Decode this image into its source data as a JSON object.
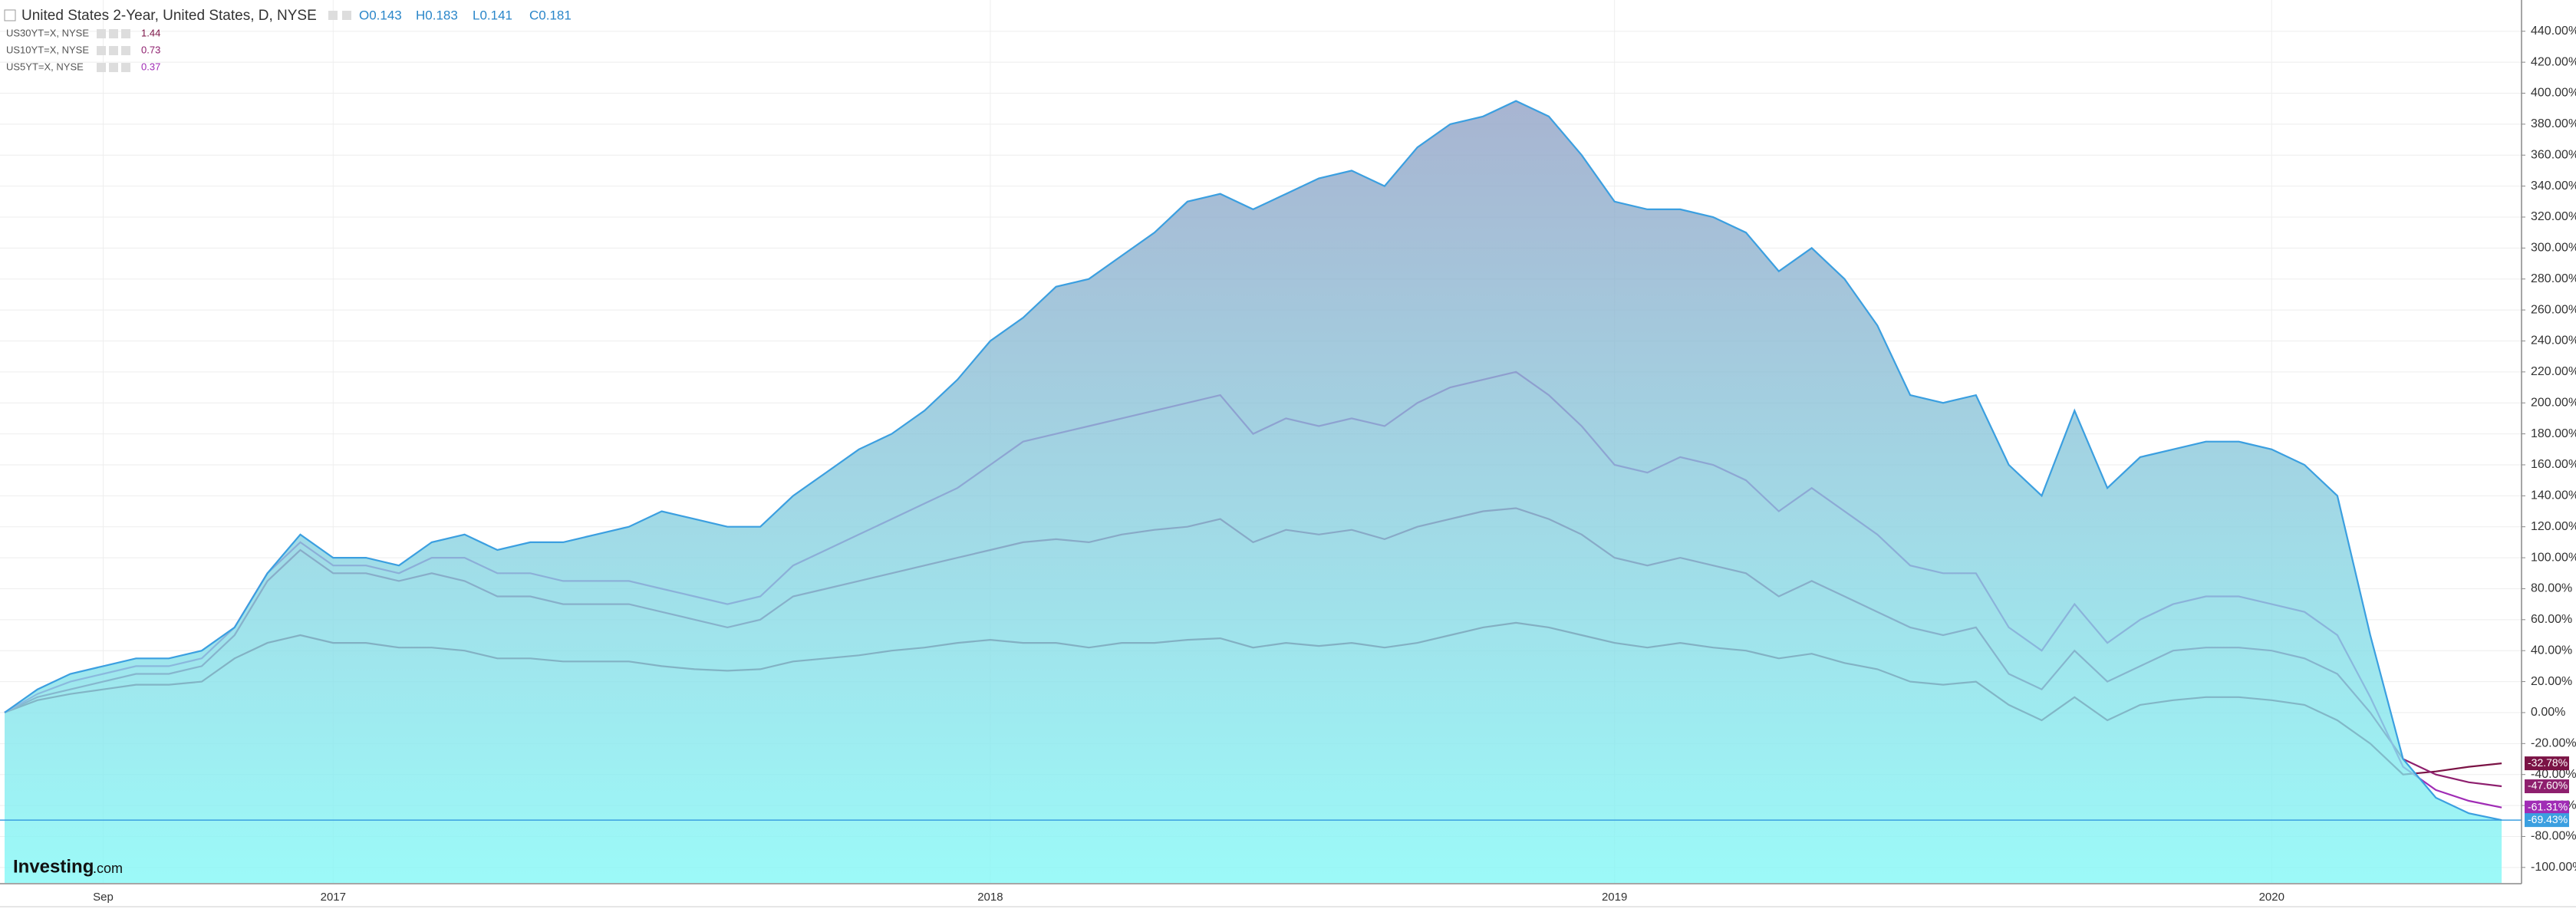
{
  "header": {
    "title": "United States 2-Year, United States, D, NYSE",
    "ohlc": [
      "O0.143",
      "H0.183",
      "L0.141",
      "C0.181"
    ]
  },
  "logo": {
    "name": "Investing",
    "suffix": ".com"
  },
  "chart_data": {
    "type": "line",
    "grid": true,
    "ylim": [
      -110,
      458
    ],
    "yticks": [
      {
        "value": 440,
        "label": "440.00%"
      },
      {
        "value": 420,
        "label": "420.00%"
      },
      {
        "value": 400,
        "label": "400.00%"
      },
      {
        "value": 380,
        "label": "380.00%"
      },
      {
        "value": 360,
        "label": "360.00%"
      },
      {
        "value": 340,
        "label": "340.00%"
      },
      {
        "value": 320,
        "label": "320.00%"
      },
      {
        "value": 300,
        "label": "300.00%"
      },
      {
        "value": 280,
        "label": "280.00%"
      },
      {
        "value": 260,
        "label": "260.00%"
      },
      {
        "value": 240,
        "label": "240.00%"
      },
      {
        "value": 220,
        "label": "220.00%"
      },
      {
        "value": 200,
        "label": "200.00%"
      },
      {
        "value": 180,
        "label": "180.00%"
      },
      {
        "value": 160,
        "label": "160.00%"
      },
      {
        "value": 140,
        "label": "140.00%"
      },
      {
        "value": 120,
        "label": "120.00%"
      },
      {
        "value": 100,
        "label": "100.00%"
      },
      {
        "value": 80,
        "label": "80.00%"
      },
      {
        "value": 60,
        "label": "60.00%"
      },
      {
        "value": 40,
        "label": "40.00%"
      },
      {
        "value": 20,
        "label": "20.00%"
      },
      {
        "value": 0,
        "label": "0.00%"
      },
      {
        "value": -20,
        "label": "-20.00%"
      },
      {
        "value": -40,
        "label": "-40.00%"
      },
      {
        "value": -60,
        "label": "-60.00%"
      },
      {
        "value": -80,
        "label": "-80.00%"
      },
      {
        "value": -100,
        "label": "-100.00%"
      }
    ],
    "categories": [
      null,
      null,
      null,
      "Sep",
      null,
      null,
      null,
      null,
      null,
      null,
      "2017",
      null,
      null,
      null,
      null,
      null,
      null,
      null,
      null,
      null,
      null,
      null,
      null,
      null,
      null,
      null,
      null,
      null,
      null,
      null,
      "2018",
      null,
      null,
      null,
      null,
      null,
      null,
      null,
      null,
      null,
      null,
      null,
      null,
      null,
      null,
      null,
      null,
      null,
      null,
      "2019",
      null,
      null,
      null,
      null,
      null,
      null,
      null,
      null,
      null,
      null,
      null,
      null,
      null,
      null,
      null,
      null,
      null,
      null,
      null,
      "2020",
      null,
      null,
      null,
      null,
      null,
      null,
      null
    ],
    "series": [
      {
        "name": "US30YT=X, NYSE",
        "quote": 1.44,
        "color": "#7b1345",
        "last_label": "-32.78%",
        "values": [
          0,
          8,
          12,
          15,
          18,
          18,
          20,
          35,
          45,
          50,
          45,
          45,
          42,
          42,
          40,
          35,
          35,
          33,
          33,
          33,
          30,
          28,
          27,
          28,
          33,
          35,
          37,
          40,
          42,
          45,
          47,
          45,
          45,
          42,
          45,
          45,
          47,
          48,
          42,
          45,
          43,
          45,
          42,
          45,
          50,
          55,
          58,
          55,
          50,
          45,
          42,
          45,
          42,
          40,
          35,
          38,
          32,
          28,
          20,
          18,
          20,
          5,
          -5,
          10,
          -5,
          5,
          8,
          10,
          10,
          8,
          5,
          -5,
          -20,
          -40,
          -38,
          -35,
          -32.78
        ]
      },
      {
        "name": "US10YT=X, NYSE",
        "quote": 0.73,
        "color": "#8e1f6e",
        "last_label": "-47.60%",
        "values": [
          0,
          10,
          15,
          20,
          25,
          25,
          30,
          50,
          85,
          105,
          90,
          90,
          85,
          90,
          85,
          75,
          75,
          70,
          70,
          70,
          65,
          60,
          55,
          60,
          75,
          80,
          85,
          90,
          95,
          100,
          105,
          110,
          112,
          110,
          115,
          118,
          120,
          125,
          110,
          118,
          115,
          118,
          112,
          120,
          125,
          130,
          132,
          125,
          115,
          100,
          95,
          100,
          95,
          90,
          75,
          85,
          75,
          65,
          55,
          50,
          55,
          25,
          15,
          40,
          20,
          30,
          40,
          42,
          42,
          40,
          35,
          25,
          0,
          -30,
          -40,
          -45,
          -47.6
        ]
      },
      {
        "name": "US5YT=X, NYSE",
        "quote": 0.37,
        "color": "#a02cb5",
        "last_label": "-61.31%",
        "values": [
          0,
          12,
          20,
          25,
          30,
          30,
          35,
          55,
          90,
          110,
          95,
          95,
          90,
          100,
          100,
          90,
          90,
          85,
          85,
          85,
          80,
          75,
          70,
          75,
          95,
          105,
          115,
          125,
          135,
          145,
          160,
          175,
          180,
          185,
          190,
          195,
          200,
          205,
          180,
          190,
          185,
          190,
          185,
          200,
          210,
          215,
          220,
          205,
          185,
          160,
          155,
          165,
          160,
          150,
          130,
          145,
          130,
          115,
          95,
          90,
          90,
          55,
          40,
          70,
          45,
          60,
          70,
          75,
          75,
          70,
          65,
          50,
          10,
          -35,
          -50,
          -57,
          -61.31
        ]
      },
      {
        "name": "United States 2-Year",
        "area": true,
        "color": "#3b9fe0",
        "last_label": "-69.43%",
        "values": [
          0,
          15,
          25,
          30,
          35,
          35,
          40,
          55,
          90,
          115,
          100,
          100,
          95,
          110,
          115,
          105,
          110,
          110,
          115,
          120,
          130,
          125,
          120,
          120,
          140,
          155,
          170,
          180,
          195,
          215,
          240,
          255,
          275,
          280,
          295,
          310,
          330,
          335,
          325,
          335,
          345,
          350,
          340,
          365,
          380,
          385,
          395,
          385,
          360,
          330,
          325,
          325,
          320,
          310,
          285,
          300,
          280,
          250,
          205,
          200,
          205,
          160,
          140,
          195,
          145,
          165,
          170,
          175,
          175,
          170,
          160,
          140,
          50,
          -30,
          -55,
          -65,
          -69.43
        ]
      }
    ]
  }
}
